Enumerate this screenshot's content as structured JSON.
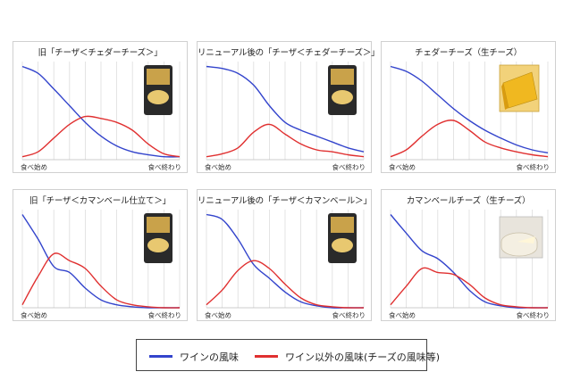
{
  "colors": {
    "wine": "#3344cc",
    "other": "#e03030",
    "grid": "#dddddd",
    "axis": "#bbbbbb"
  },
  "legend": {
    "wine_label": "ワインの風味",
    "other_label": "ワイン以外の風味(チーズの風味等)"
  },
  "chart_data": [
    {
      "type": "line",
      "title": "旧「チーザ＜チェダーチーズ＞」",
      "xlabel_start": "食べ始め",
      "xlabel_end": "食べ終わり",
      "image_icon": "cheese-snack-package-icon",
      "x": [
        0,
        1,
        2,
        3,
        4,
        5,
        6,
        7,
        8,
        9,
        10
      ],
      "series": [
        {
          "name": "ワインの風味",
          "values": [
            95,
            88,
            72,
            55,
            38,
            24,
            14,
            8,
            5,
            3,
            3
          ]
        },
        {
          "name": "ワイン以外の風味(チーズの風味等)",
          "values": [
            3,
            8,
            22,
            36,
            44,
            42,
            38,
            30,
            16,
            6,
            3
          ]
        }
      ],
      "ylim": [
        0,
        100
      ]
    },
    {
      "type": "line",
      "title": "リニューアル後の「チーザ＜チェダーチーズ＞」",
      "xlabel_start": "食べ始め",
      "xlabel_end": "食べ終わり",
      "image_icon": "cheese-snack-package-icon",
      "x": [
        0,
        1,
        2,
        3,
        4,
        5,
        6,
        7,
        8,
        9,
        10
      ],
      "series": [
        {
          "name": "ワインの風味",
          "values": [
            95,
            93,
            88,
            76,
            55,
            38,
            30,
            24,
            18,
            12,
            8
          ]
        },
        {
          "name": "ワイン以外の風味(チーズの風味等)",
          "values": [
            3,
            6,
            12,
            28,
            36,
            26,
            16,
            10,
            8,
            5,
            3
          ]
        }
      ],
      "ylim": [
        0,
        100
      ]
    },
    {
      "type": "line",
      "title": "チェダーチーズ（生チーズ）",
      "xlabel_start": "食べ始め",
      "xlabel_end": "食べ終わり",
      "image_icon": "cheddar-cheese-icon",
      "x": [
        0,
        1,
        2,
        3,
        4,
        5,
        6,
        7,
        8,
        9,
        10
      ],
      "series": [
        {
          "name": "ワインの風味",
          "values": [
            95,
            90,
            80,
            66,
            52,
            40,
            30,
            22,
            15,
            10,
            7
          ]
        },
        {
          "name": "ワイン以外の風味(チーズの風味等)",
          "values": [
            3,
            10,
            24,
            36,
            40,
            30,
            18,
            12,
            8,
            5,
            3
          ]
        }
      ],
      "ylim": [
        0,
        100
      ]
    },
    {
      "type": "line",
      "title": "旧「チーザ＜カマンベール仕立て＞」",
      "xlabel_start": "食べ始め",
      "xlabel_end": "食べ終わり",
      "image_icon": "cheese-snack-package-icon",
      "x": [
        0,
        1,
        2,
        3,
        4,
        5,
        6,
        7,
        8,
        9,
        10
      ],
      "series": [
        {
          "name": "ワインの風味",
          "values": [
            95,
            70,
            42,
            36,
            20,
            8,
            3,
            1,
            0,
            0,
            0
          ]
        },
        {
          "name": "ワイン以外の風味(チーズの風味等)",
          "values": [
            3,
            32,
            55,
            48,
            40,
            22,
            8,
            3,
            1,
            0,
            0
          ]
        }
      ],
      "ylim": [
        0,
        100
      ]
    },
    {
      "type": "line",
      "title": "リニューアル後の「チーザ＜カマンベール＞」",
      "xlabel_start": "食べ始め",
      "xlabel_end": "食べ終わり",
      "image_icon": "cheese-snack-package-icon",
      "x": [
        0,
        1,
        2,
        3,
        4,
        5,
        6,
        7,
        8,
        9,
        10
      ],
      "series": [
        {
          "name": "ワインの風味",
          "values": [
            95,
            90,
            70,
            44,
            30,
            16,
            6,
            2,
            0,
            0,
            0
          ]
        },
        {
          "name": "ワイン以外の風味(チーズの風味等)",
          "values": [
            3,
            18,
            38,
            48,
            40,
            24,
            10,
            3,
            1,
            0,
            0
          ]
        }
      ],
      "ylim": [
        0,
        100
      ]
    },
    {
      "type": "line",
      "title": "カマンベールチーズ（生チーズ）",
      "xlabel_start": "食べ始め",
      "xlabel_end": "食べ終わり",
      "image_icon": "camembert-cheese-icon",
      "x": [
        0,
        1,
        2,
        3,
        4,
        5,
        6,
        7,
        8,
        9,
        10
      ],
      "series": [
        {
          "name": "ワインの風味",
          "values": [
            95,
            76,
            58,
            50,
            36,
            18,
            6,
            2,
            0,
            0,
            0
          ]
        },
        {
          "name": "ワイン以外の風味(チーズの風味等)",
          "values": [
            3,
            22,
            40,
            36,
            34,
            24,
            10,
            3,
            1,
            0,
            0
          ]
        }
      ],
      "ylim": [
        0,
        100
      ]
    }
  ]
}
